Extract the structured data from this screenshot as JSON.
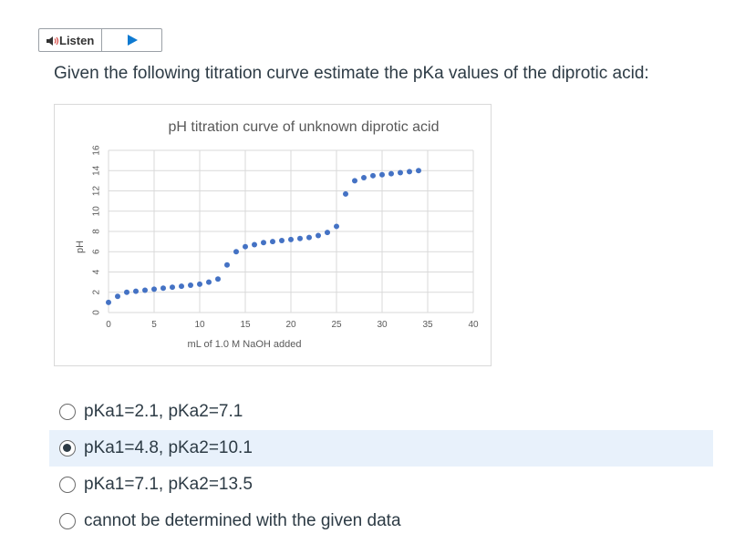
{
  "listen": {
    "label": "Listen"
  },
  "question": {
    "text": "Given the following titration curve estimate the pKa values of the diprotic acid:"
  },
  "options": [
    {
      "label": "pKa1=2.1, pKa2=7.1",
      "selected": false
    },
    {
      "label": "pKa1=4.8, pKa2=10.1",
      "selected": true
    },
    {
      "label": "pKa1=7.1, pKa2=13.5",
      "selected": false
    },
    {
      "label": "cannot be determined with the given data",
      "selected": false
    }
  ],
  "colors": {
    "point": "#4472c4",
    "selected_bg": "#e8f1fb"
  },
  "chart_data": {
    "type": "scatter",
    "title": "pH titration curve of unknown diprotic acid",
    "xlabel": "mL of 1.0 M NaOH added",
    "ylabel": "pH",
    "xlim": [
      0,
      40
    ],
    "ylim": [
      0,
      16
    ],
    "xticks": [
      0,
      5,
      10,
      15,
      20,
      25,
      30,
      35,
      40
    ],
    "yticks": [
      0,
      2,
      4,
      6,
      8,
      10,
      12,
      14,
      16
    ],
    "grid": true,
    "series": [
      {
        "x": [
          0,
          1,
          2,
          3,
          4,
          5,
          6,
          7,
          8,
          9,
          10,
          11,
          12,
          13,
          14,
          15,
          16,
          17,
          18,
          19,
          20,
          21,
          22,
          23,
          24,
          25,
          26,
          27,
          28,
          29,
          30,
          31,
          32,
          33,
          34
        ],
        "y": [
          1.0,
          1.6,
          2.0,
          2.1,
          2.2,
          2.3,
          2.4,
          2.5,
          2.6,
          2.7,
          2.8,
          3.0,
          3.3,
          4.7,
          6.0,
          6.5,
          6.7,
          6.9,
          7.0,
          7.1,
          7.2,
          7.3,
          7.4,
          7.6,
          7.9,
          8.5,
          11.7,
          13.0,
          13.3,
          13.5,
          13.6,
          13.7,
          13.8,
          13.9,
          14.0
        ]
      }
    ]
  }
}
